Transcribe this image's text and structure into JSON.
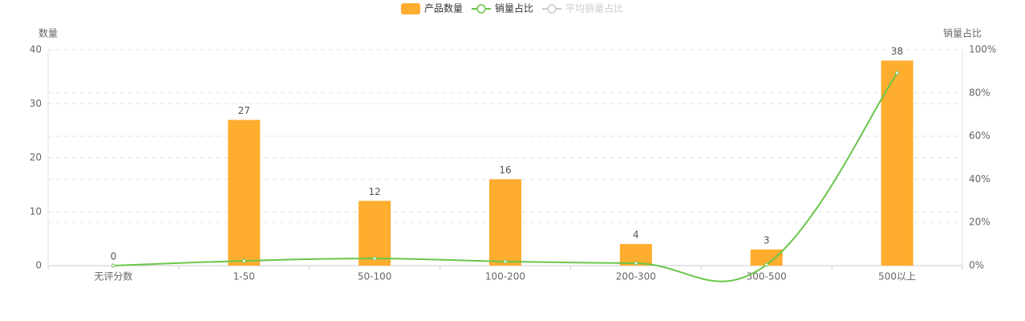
{
  "chart_data": {
    "type": "bar_line",
    "categories": [
      "无评分数",
      "1-50",
      "50-100",
      "100-200",
      "200-300",
      "300-500",
      "500以上"
    ],
    "series": [
      {
        "name": "产品数量",
        "type": "bar",
        "color": "#ffad2e",
        "axis": "y",
        "values": [
          0,
          27,
          12,
          16,
          4,
          3,
          38
        ]
      },
      {
        "name": "销量占比",
        "type": "line",
        "smooth": true,
        "color": "#6ac64a",
        "axis": "y2",
        "values": [
          0,
          2.2,
          3.3,
          1.9,
          1.1,
          0.4,
          89.2
        ]
      },
      {
        "name": "平均销量占比",
        "type": "line",
        "color": "#cccccc",
        "visible": false
      }
    ],
    "ylabel": "数量",
    "y2label": "销量占比",
    "ylim": [
      0,
      40
    ],
    "yticks": [
      0,
      10,
      20,
      30,
      40
    ],
    "y2lim": [
      0,
      100
    ],
    "y2ticks": [
      {
        "value": 0,
        "label": "0%"
      },
      {
        "value": 20,
        "label": "20%"
      },
      {
        "value": 40,
        "label": "40%"
      },
      {
        "value": 60,
        "label": "60%"
      },
      {
        "value": 80,
        "label": "80%"
      },
      {
        "value": 100,
        "label": "100%"
      }
    ],
    "grid": true,
    "legend": "top"
  }
}
